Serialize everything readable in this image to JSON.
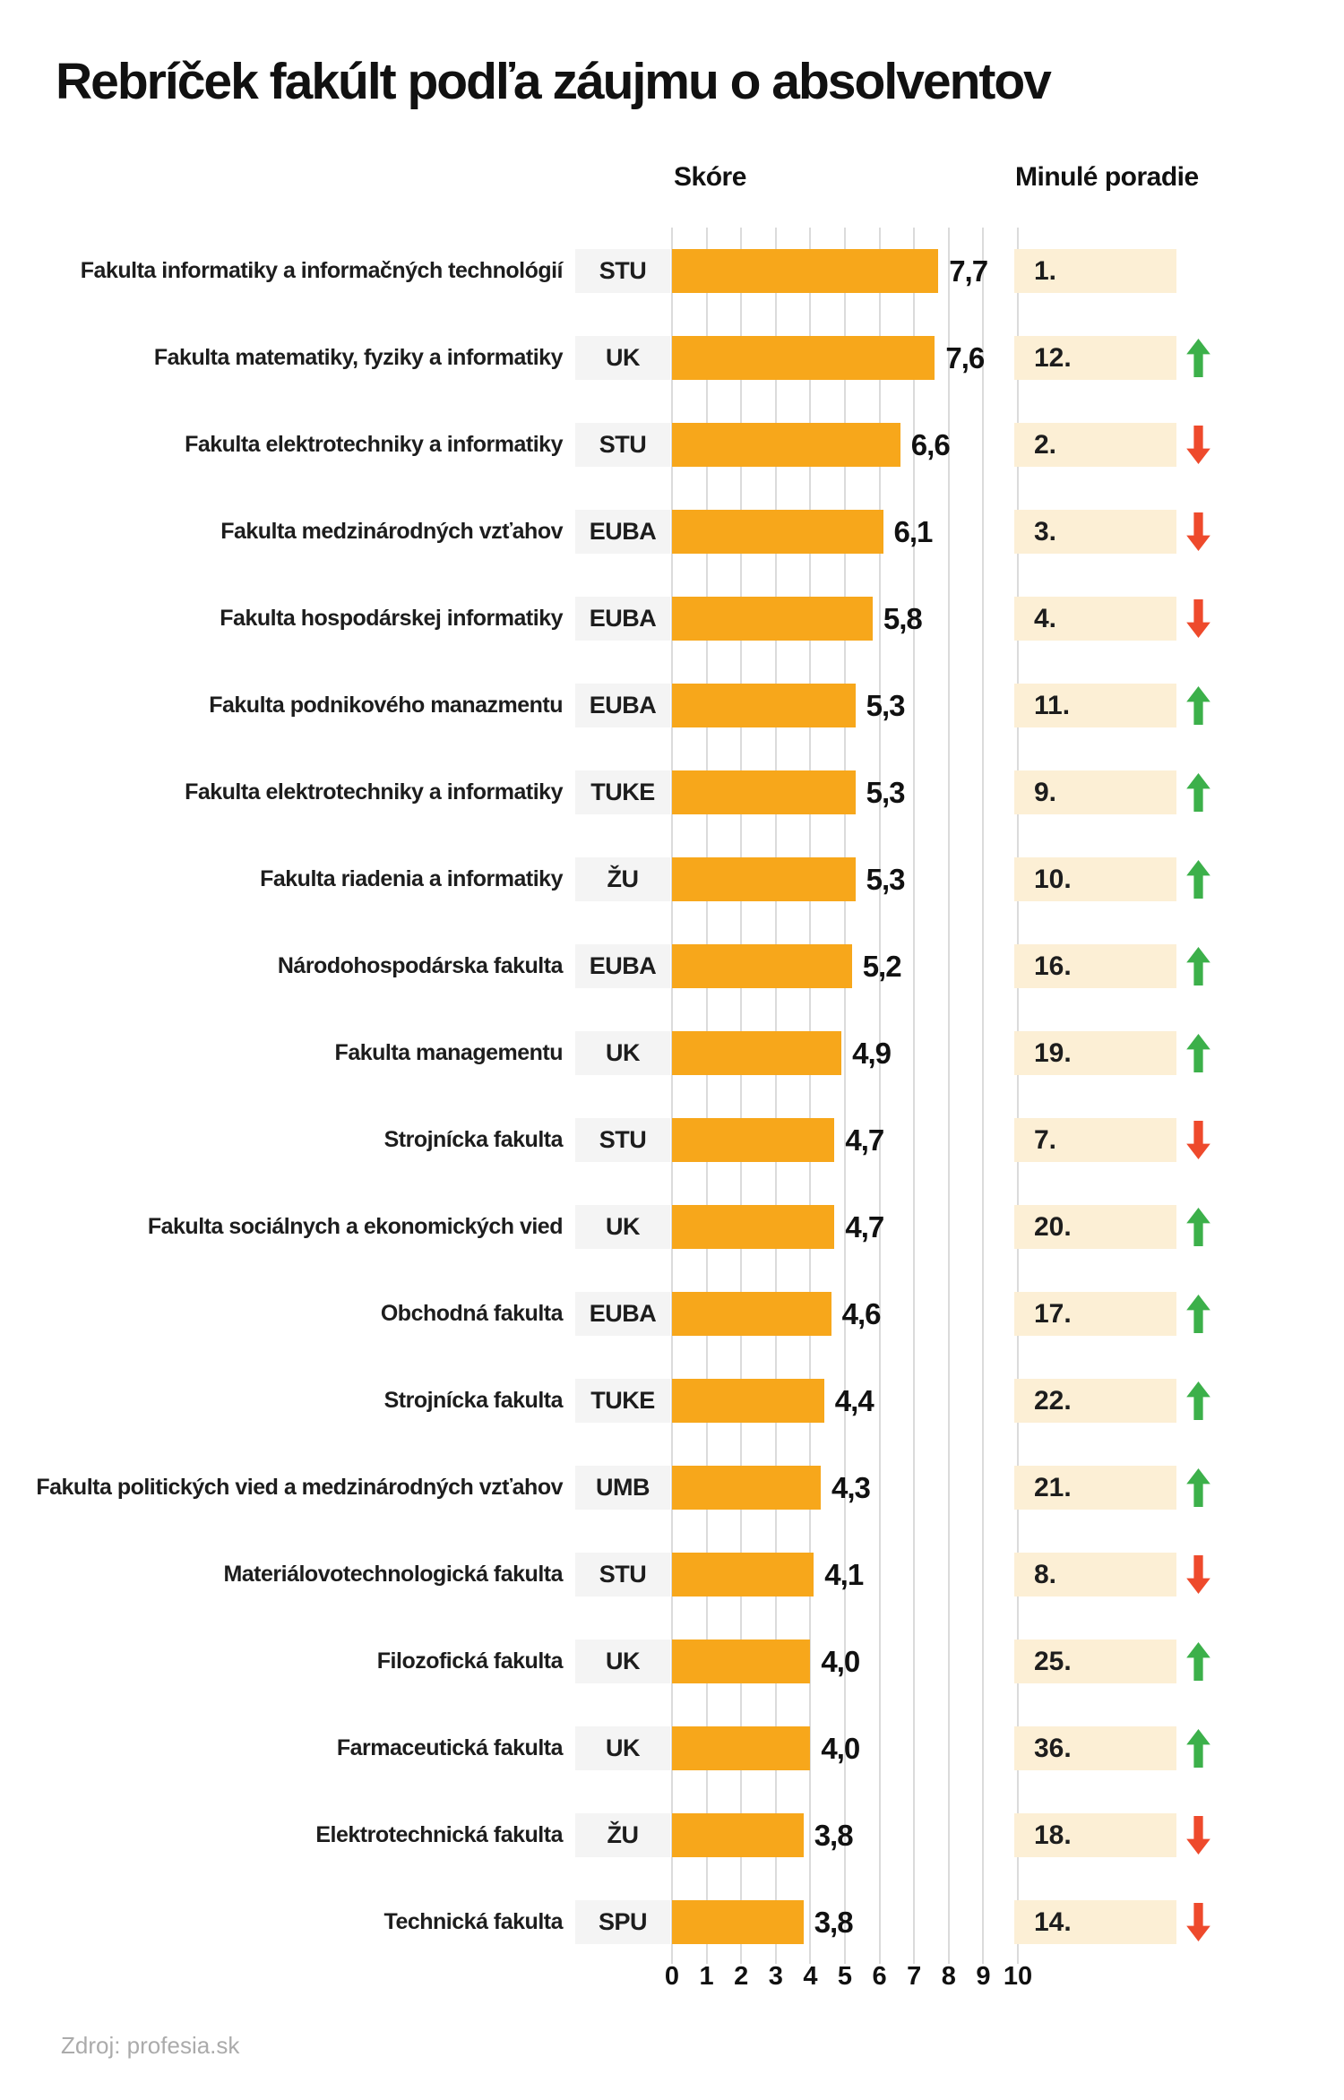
{
  "title": "Rebríček fakúlt podľa záujmu o absolventov",
  "headers": {
    "score": "Skóre",
    "previous_rank": "Minulé poradie"
  },
  "source": "Zdroj: profesia.sk",
  "colors": {
    "bar": "#F7A71B",
    "uni_chip_bg": "#F4F4F4",
    "rank_chip_bg": "#FCEFD5",
    "up_arrow": "#3CB04A",
    "down_arrow": "#EE4A2C",
    "gridline": "#DBDBDB",
    "text": "#1A1A1A",
    "source_text": "#ABABAB"
  },
  "chart_data": {
    "type": "bar",
    "orientation": "horizontal",
    "title": "Rebríček fakúlt podľa záujmu o absolventov",
    "xlabel": "Skóre",
    "xlim": [
      0,
      10
    ],
    "xticks": [
      0,
      1,
      2,
      3,
      4,
      5,
      6,
      7,
      8,
      9,
      10
    ],
    "grid": true,
    "legend": null,
    "rows": [
      {
        "faculty": "Fakulta informatiky a informačných technológií",
        "university": "STU",
        "score": 7.7,
        "score_label": "7,7",
        "previous_rank": "1.",
        "trend": "none"
      },
      {
        "faculty": "Fakulta matematiky, fyziky a informatiky",
        "university": "UK",
        "score": 7.6,
        "score_label": "7,6",
        "previous_rank": "12.",
        "trend": "up"
      },
      {
        "faculty": "Fakulta elektrotechniky a informatiky",
        "university": "STU",
        "score": 6.6,
        "score_label": "6,6",
        "previous_rank": "2.",
        "trend": "down"
      },
      {
        "faculty": "Fakulta medzinárodných vzťahov",
        "university": "EUBA",
        "score": 6.1,
        "score_label": "6,1",
        "previous_rank": "3.",
        "trend": "down"
      },
      {
        "faculty": "Fakulta hospodárskej informatiky",
        "university": "EUBA",
        "score": 5.8,
        "score_label": "5,8",
        "previous_rank": "4.",
        "trend": "down"
      },
      {
        "faculty": "Fakulta podnikového manazmentu",
        "university": "EUBA",
        "score": 5.3,
        "score_label": "5,3",
        "previous_rank": "11.",
        "trend": "up"
      },
      {
        "faculty": "Fakulta elektrotechniky a informatiky",
        "university": "TUKE",
        "score": 5.3,
        "score_label": "5,3",
        "previous_rank": "9.",
        "trend": "up"
      },
      {
        "faculty": "Fakulta riadenia a informatiky",
        "university": "ŽU",
        "score": 5.3,
        "score_label": "5,3",
        "previous_rank": "10.",
        "trend": "up"
      },
      {
        "faculty": "Národohospodárska fakulta",
        "university": "EUBA",
        "score": 5.2,
        "score_label": "5,2",
        "previous_rank": "16.",
        "trend": "up"
      },
      {
        "faculty": "Fakulta managementu",
        "university": "UK",
        "score": 4.9,
        "score_label": "4,9",
        "previous_rank": "19.",
        "trend": "up"
      },
      {
        "faculty": "Strojnícka fakulta",
        "university": "STU",
        "score": 4.7,
        "score_label": "4,7",
        "previous_rank": "7.",
        "trend": "down"
      },
      {
        "faculty": "Fakulta sociálnych a ekonomických vied",
        "university": "UK",
        "score": 4.7,
        "score_label": "4,7",
        "previous_rank": "20.",
        "trend": "up"
      },
      {
        "faculty": "Obchodná fakulta",
        "university": "EUBA",
        "score": 4.6,
        "score_label": "4,6",
        "previous_rank": "17.",
        "trend": "up"
      },
      {
        "faculty": "Strojnícka fakulta",
        "university": "TUKE",
        "score": 4.4,
        "score_label": "4,4",
        "previous_rank": "22.",
        "trend": "up"
      },
      {
        "faculty": "Fakulta politických vied a medzinárodných vzťahov",
        "university": "UMB",
        "score": 4.3,
        "score_label": "4,3",
        "previous_rank": "21.",
        "trend": "up"
      },
      {
        "faculty": "Materiálovotechnologická fakulta",
        "university": "STU",
        "score": 4.1,
        "score_label": "4,1",
        "previous_rank": "8.",
        "trend": "down"
      },
      {
        "faculty": "Filozofická fakulta",
        "university": "UK",
        "score": 4.0,
        "score_label": "4,0",
        "previous_rank": "25.",
        "trend": "up"
      },
      {
        "faculty": "Farmaceutická fakulta",
        "university": "UK",
        "score": 4.0,
        "score_label": "4,0",
        "previous_rank": "36.",
        "trend": "up"
      },
      {
        "faculty": "Elektrotechnická fakulta",
        "university": "ŽU",
        "score": 3.8,
        "score_label": "3,8",
        "previous_rank": "18.",
        "trend": "down"
      },
      {
        "faculty": "Technická fakulta",
        "university": "SPU",
        "score": 3.8,
        "score_label": "3,8",
        "previous_rank": "14.",
        "trend": "down"
      }
    ]
  }
}
